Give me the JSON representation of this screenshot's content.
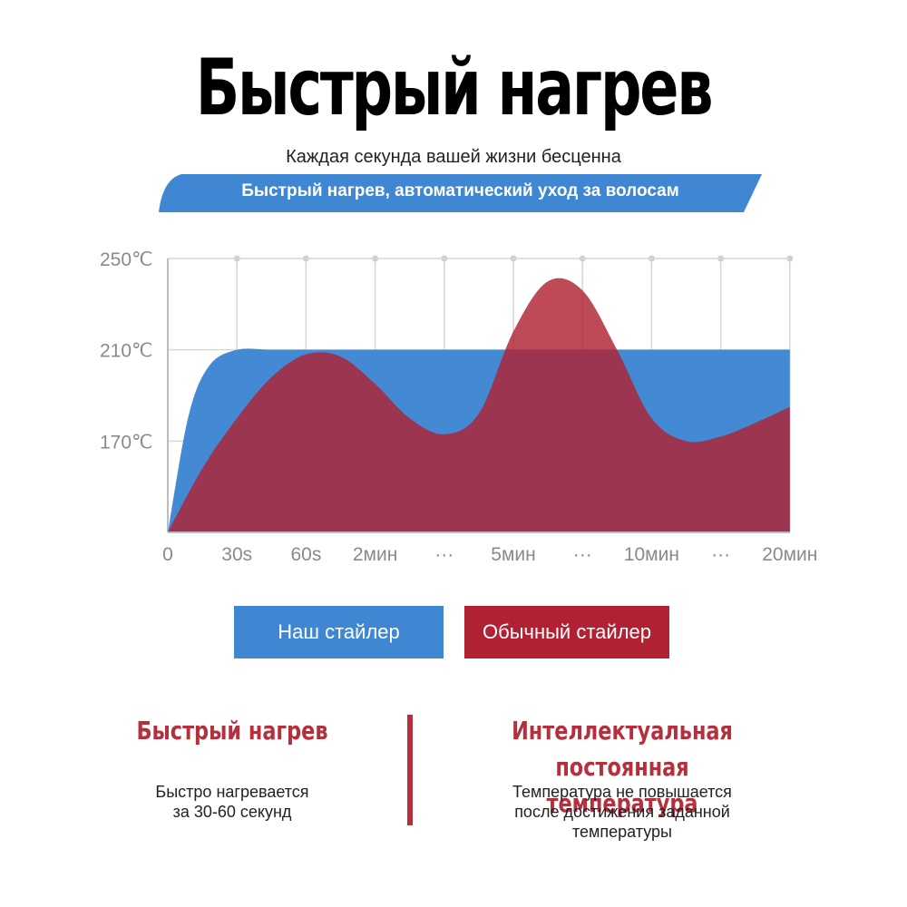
{
  "header": {
    "title": "Быстрый нагрев",
    "subtitle": "Каждая секунда вашей жизни бесценна",
    "banner": "Быстрый нагрев, автоматический уход за волосам"
  },
  "colors": {
    "ours": "#3f87d2",
    "regular": "#b02233",
    "accent_text": "#b3303c",
    "grid": "#d6d6d6"
  },
  "chart_data": {
    "type": "area",
    "x_tick_labels": [
      "0",
      "30s",
      "60s",
      "2мин",
      "···",
      "5мин",
      "···",
      "10мин",
      "···",
      "20мин"
    ],
    "y_tick_labels": [
      "250℃",
      "210℃",
      "170℃"
    ],
    "y_ticks": [
      250,
      210,
      170
    ],
    "ylim": [
      130,
      250
    ],
    "grid": true,
    "series": [
      {
        "name": "Наш стайлер",
        "color": "#3f87d2",
        "x": [
          0,
          0.3,
          0.6,
          1,
          1.5,
          2,
          3,
          4,
          5,
          6,
          7,
          8,
          9
        ],
        "y": [
          130,
          181,
          203,
          210,
          210,
          210,
          210,
          210,
          210,
          210,
          210,
          210,
          210
        ]
      },
      {
        "name": "Обычный стайлер",
        "color": "#b02233",
        "x": [
          0,
          0.5,
          1,
          1.5,
          2,
          2.5,
          3,
          3.5,
          4,
          4.5,
          5,
          5.5,
          6,
          6.5,
          7,
          7.5,
          8,
          8.5,
          9
        ],
        "y": [
          130,
          158,
          180,
          198,
          208,
          207,
          195,
          180,
          173,
          182,
          218,
          240,
          236,
          210,
          180,
          170,
          172,
          178,
          185
        ]
      }
    ]
  },
  "legend": {
    "ours_label": "Наш стайлер",
    "regular_label": "Обычный стайлер"
  },
  "features": {
    "left_title": "Быстрый нагрев",
    "left_desc": "Быстро нагревается\nза 30-60 секунд",
    "right_title": "Интеллектуальная постоянная\nтемпература",
    "right_desc": "Температура не повышается\nпосле достижения заданной\nтемпературы"
  }
}
